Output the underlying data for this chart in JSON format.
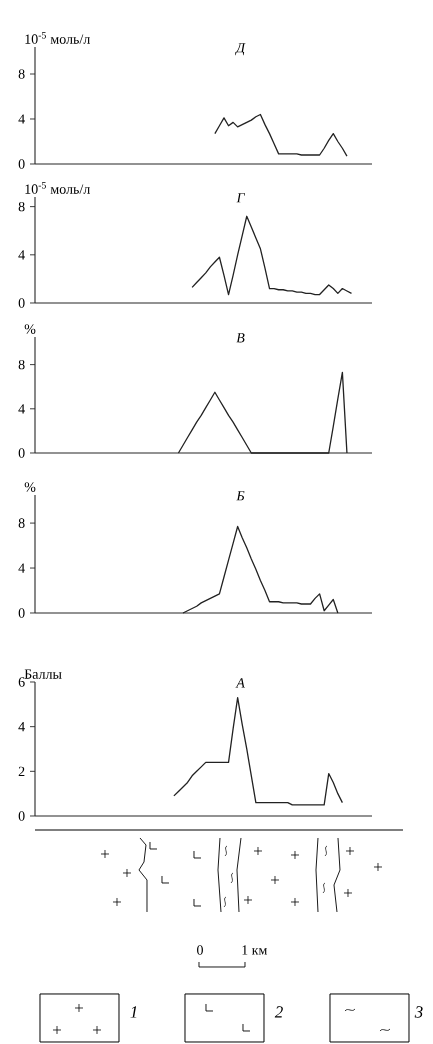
{
  "chart_data": [
    {
      "type": "line",
      "title": "Д",
      "ylabel": "10$^{-5}$ моль/л",
      "color": "#222222",
      "ylim": [
        0,
        10.4
      ],
      "yticks": [
        0,
        4,
        8
      ],
      "tick_labels": "y",
      "categories": [
        null,
        null,
        null,
        null,
        null,
        null,
        null,
        null,
        null,
        null,
        null,
        null,
        null,
        null,
        null,
        null,
        null,
        null,
        null,
        null,
        null,
        null,
        null,
        null,
        null,
        null,
        null,
        null,
        null,
        null,
        null,
        null,
        null,
        null,
        null,
        null,
        null,
        null,
        null,
        null,
        null,
        null,
        null,
        null,
        null,
        null,
        null,
        null,
        null,
        null,
        null,
        null,
        null,
        null,
        null,
        null,
        null,
        null,
        null,
        null,
        null,
        null,
        null,
        null,
        null,
        null,
        null,
        null,
        null,
        null,
        null,
        null,
        null,
        null
      ],
      "values": [
        null,
        null,
        null,
        null,
        null,
        null,
        null,
        null,
        null,
        null,
        null,
        null,
        null,
        null,
        null,
        null,
        null,
        null,
        null,
        null,
        null,
        null,
        null,
        null,
        null,
        null,
        null,
        null,
        null,
        null,
        null,
        null,
        null,
        null,
        null,
        null,
        null,
        null,
        null,
        2.7,
        3.4,
        4.1,
        3.4,
        3.7,
        3.3,
        3.5,
        3.7,
        3.9,
        4.2,
        4.4,
        3.5,
        2.7,
        1.8,
        0.9,
        0.9,
        0.9,
        0.9,
        0.9,
        0.8,
        0.8,
        0.8,
        0.8,
        0.8,
        1.4,
        2.1,
        2.7,
        2.0,
        1.4,
        0.7,
        null,
        null,
        null,
        null,
        null
      ]
    },
    {
      "type": "line",
      "title": "Г",
      "ylabel": "10$^{-5}$ моль/л",
      "color": "#222222",
      "ylim": [
        0,
        8.8
      ],
      "yticks": [
        0,
        4,
        8
      ],
      "tick_labels": "y",
      "categories": [
        null,
        null,
        null,
        null,
        null,
        null,
        null,
        null,
        null,
        null,
        null,
        null,
        null,
        null,
        null,
        null,
        null,
        null,
        null,
        null,
        null,
        null,
        null,
        null,
        null,
        null,
        null,
        null,
        null,
        null,
        null,
        null,
        null,
        null,
        null,
        null,
        null,
        null,
        null,
        null,
        null,
        null,
        null,
        null,
        null,
        null,
        null,
        null,
        null,
        null,
        null,
        null,
        null,
        null,
        null,
        null,
        null,
        null,
        null,
        null,
        null,
        null,
        null,
        null,
        null,
        null,
        null,
        null,
        null,
        null,
        null,
        null,
        null,
        null
      ],
      "values": [
        null,
        null,
        null,
        null,
        null,
        null,
        null,
        null,
        null,
        null,
        null,
        null,
        null,
        null,
        null,
        null,
        null,
        null,
        null,
        null,
        null,
        null,
        null,
        null,
        null,
        null,
        null,
        null,
        null,
        null,
        null,
        null,
        null,
        null,
        1.3,
        1.7,
        2.1,
        2.5,
        3.0,
        3.4,
        3.8,
        2.3,
        0.7,
        2.3,
        4.0,
        5.6,
        7.2,
        6.3,
        5.4,
        4.5,
        2.9,
        1.2,
        1.2,
        1.1,
        1.1,
        1.0,
        1.0,
        0.9,
        0.9,
        0.8,
        0.8,
        0.7,
        0.7,
        1.1,
        1.5,
        1.2,
        0.8,
        1.2,
        1.0,
        0.8,
        null,
        null,
        null,
        null
      ]
    },
    {
      "type": "line",
      "title": "В",
      "ylabel": "%",
      "color": "#222222",
      "ylim": [
        0,
        10.5
      ],
      "yticks": [
        0,
        4,
        8
      ],
      "tick_labels": "y",
      "categories": [
        null,
        null,
        null,
        null,
        null,
        null,
        null,
        null,
        null,
        null,
        null,
        null,
        null,
        null,
        null,
        null,
        null,
        null,
        null,
        null,
        null,
        null,
        null,
        null,
        null,
        null,
        null,
        null,
        null,
        null,
        null,
        null,
        null,
        null,
        null,
        null,
        null,
        null,
        null,
        null,
        null,
        null,
        null,
        null,
        null,
        null,
        null,
        null,
        null,
        null,
        null,
        null,
        null,
        null,
        null,
        null,
        null,
        null,
        null,
        null,
        null,
        null,
        null,
        null,
        null,
        null,
        null,
        null,
        null,
        null,
        null,
        null,
        null,
        null
      ],
      "values": [
        null,
        null,
        null,
        null,
        null,
        null,
        null,
        null,
        null,
        null,
        null,
        null,
        null,
        null,
        null,
        null,
        null,
        null,
        null,
        null,
        null,
        null,
        null,
        null,
        null,
        null,
        null,
        null,
        null,
        null,
        null,
        0,
        0.7,
        1.4,
        2.1,
        2.8,
        3.4,
        4.1,
        4.8,
        5.5,
        4.8,
        4.1,
        3.4,
        2.8,
        2.1,
        1.4,
        0.7,
        0,
        0,
        0,
        0,
        0,
        0,
        0,
        0,
        0,
        0,
        0,
        0,
        0,
        0,
        0,
        0,
        0,
        0,
        2.4,
        4.9,
        7.3,
        0,
        null,
        null,
        null,
        null,
        null
      ]
    },
    {
      "type": "line",
      "title": "Б",
      "ylabel": "%",
      "color": "#222222",
      "ylim": [
        0,
        10.5
      ],
      "yticks": [
        0,
        4,
        8
      ],
      "tick_labels": "y",
      "categories": [
        null,
        null,
        null,
        null,
        null,
        null,
        null,
        null,
        null,
        null,
        null,
        null,
        null,
        null,
        null,
        null,
        null,
        null,
        null,
        null,
        null,
        null,
        null,
        null,
        null,
        null,
        null,
        null,
        null,
        null,
        null,
        null,
        null,
        null,
        null,
        null,
        null,
        null,
        null,
        null,
        null,
        null,
        null,
        null,
        null,
        null,
        null,
        null,
        null,
        null,
        null,
        null,
        null,
        null,
        null,
        null,
        null,
        null,
        null,
        null,
        null,
        null,
        null,
        null,
        null,
        null,
        null,
        null,
        null,
        null,
        null,
        null,
        null,
        null
      ],
      "values": [
        null,
        null,
        null,
        null,
        null,
        null,
        null,
        null,
        null,
        null,
        null,
        null,
        null,
        null,
        null,
        null,
        null,
        null,
        null,
        null,
        null,
        null,
        null,
        null,
        null,
        null,
        null,
        null,
        null,
        null,
        null,
        null,
        0,
        0.2,
        0.4,
        0.6,
        0.9,
        1.1,
        1.3,
        1.5,
        1.7,
        3.2,
        4.7,
        6.2,
        7.7,
        6.7,
        5.8,
        4.8,
        3.9,
        2.9,
        2.0,
        1.0,
        1.0,
        1.0,
        0.9,
        0.9,
        0.9,
        0.9,
        0.8,
        0.8,
        0.8,
        1.3,
        1.7,
        0.2,
        0.7,
        1.2,
        0,
        null,
        null,
        null,
        null,
        null,
        null,
        null
      ]
    },
    {
      "type": "line",
      "title": "А",
      "ylabel": "Баллы",
      "color": "#222222",
      "ylim": [
        0,
        6
      ],
      "yticks": [
        0,
        2,
        4,
        6
      ],
      "tick_labels": "y",
      "categories": [
        null,
        null,
        null,
        null,
        null,
        null,
        null,
        null,
        null,
        null,
        null,
        null,
        null,
        null,
        null,
        null,
        null,
        null,
        null,
        null,
        null,
        null,
        null,
        null,
        null,
        null,
        null,
        null,
        null,
        null,
        null,
        null,
        null,
        null,
        null,
        null,
        null,
        null,
        null,
        null,
        null,
        null,
        null,
        null,
        null,
        null,
        null,
        null,
        null,
        null,
        null,
        null,
        null,
        null,
        null,
        null,
        null,
        null,
        null,
        null,
        null,
        null,
        null,
        null,
        null,
        null,
        null,
        null,
        null,
        null,
        null,
        null,
        null,
        null
      ],
      "values": [
        null,
        null,
        null,
        null,
        null,
        null,
        null,
        null,
        null,
        null,
        null,
        null,
        null,
        null,
        null,
        null,
        null,
        null,
        null,
        null,
        null,
        null,
        null,
        null,
        null,
        null,
        null,
        null,
        null,
        null,
        0.9,
        1.1,
        1.3,
        1.5,
        1.8,
        2.0,
        2.2,
        2.4,
        2.4,
        2.4,
        2.4,
        2.4,
        2.4,
        3.9,
        5.3,
        4.1,
        3.0,
        1.8,
        0.6,
        0.6,
        0.6,
        0.6,
        0.6,
        0.6,
        0.6,
        0.6,
        0.5,
        0.5,
        0.5,
        0.5,
        0.5,
        0.5,
        0.5,
        0.5,
        1.9,
        1.5,
        1.0,
        0.6,
        null,
        null,
        null,
        null,
        null,
        null
      ],
      "annotations": [
        "0",
        "1 км",
        "1",
        "2",
        "3"
      ]
    }
  ]
}
